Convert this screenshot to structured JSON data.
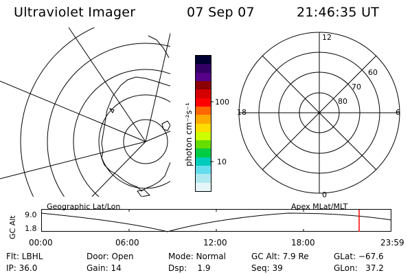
{
  "header": {
    "title": "Ultraviolet Imager",
    "date": "07 Sep 07",
    "time": "21:46:35 UT"
  },
  "colorbar": {
    "label": "photon cm⁻²s⁻¹",
    "ticks": [
      "100",
      "10"
    ],
    "colors": [
      "#000033",
      "#330066",
      "#550088",
      "#8a0000",
      "#d40000",
      "#ff0000",
      "#ff6600",
      "#ffaa00",
      "#ffdd00",
      "#ccff00",
      "#66dd00",
      "#00cc44",
      "#00ccbb",
      "#66ddee",
      "#b0e8f0",
      "#e6f6f8"
    ]
  },
  "left_map": {
    "caption": "Geographic Lat/Lon"
  },
  "right_map": {
    "caption": "Apex  MLat/MLT",
    "mlt_labels": {
      "top": "12",
      "left": "18",
      "right": "6",
      "bottom": "0"
    },
    "mlat_labels": [
      "60",
      "70",
      "80"
    ]
  },
  "altitude_plot": {
    "ylabel": "GC Alt",
    "y_ticks": [
      "9.0",
      "1.8"
    ],
    "x_ticks": [
      "00:00",
      "06:00",
      "12:00",
      "18:00",
      "23:59"
    ],
    "current_marker_color": "#ff0000"
  },
  "info_table": {
    "rows": [
      [
        "Flt: LBHL",
        "Door: Open",
        "Mode: Normal",
        "GC Alt: 7.9 Re",
        "GLat: −67.6"
      ],
      [
        "IP: 36.0",
        "Gain: 14",
        "Dsp:    1.9",
        "Seq: 39",
        "GLon:   37.2"
      ]
    ]
  }
}
